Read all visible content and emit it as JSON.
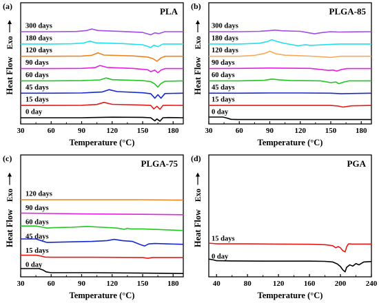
{
  "chart_data": [
    {
      "panel": "(a)",
      "type": "line",
      "title": "PLA",
      "xlabel": "Temperature (°C)",
      "ylabel": "Heat Flow",
      "y_direction": "Exo",
      "xlim": [
        30,
        190
      ],
      "xticks": [
        30,
        60,
        90,
        120,
        150,
        180
      ],
      "series": [
        {
          "name": "0 day",
          "color": "#000000",
          "x": [
            30,
            60,
            90,
            120,
            150,
            158,
            162,
            164,
            167,
            170,
            175,
            190
          ],
          "y": [
            0,
            0,
            0,
            0.3,
            0.2,
            0,
            -1.6,
            -0.6,
            -1.8,
            0,
            0.1,
            0
          ]
        },
        {
          "name": "15 days",
          "color": "#e81818",
          "x": [
            30,
            60,
            90,
            105,
            112,
            120,
            150,
            158,
            161,
            164,
            167,
            170,
            175,
            190
          ],
          "y": [
            0,
            0,
            0.1,
            0.5,
            1.6,
            0.6,
            0.2,
            0,
            -1.8,
            -0.4,
            -2.0,
            0,
            0.1,
            0
          ]
        },
        {
          "name": "45 days",
          "color": "#1428d2",
          "x": [
            30,
            60,
            90,
            110,
            117,
            125,
            150,
            158,
            162,
            165,
            168,
            172,
            190
          ],
          "y": [
            0,
            0,
            0.1,
            0.6,
            1.8,
            0.8,
            0.2,
            -0.3,
            -2.6,
            -0.8,
            -2.6,
            -0.2,
            0
          ]
        },
        {
          "name": "60 days",
          "color": "#1ec81e",
          "x": [
            30,
            60,
            90,
            108,
            114,
            120,
            150,
            158,
            162,
            165,
            168,
            172,
            190
          ],
          "y": [
            0,
            0,
            0.1,
            0.5,
            1.5,
            0.6,
            0.1,
            -0.4,
            -1.6,
            -3.2,
            -1.4,
            -0.2,
            0
          ]
        },
        {
          "name": "90 days",
          "color": "#e81ee0",
          "x": [
            30,
            60,
            90,
            103,
            108,
            115,
            140,
            155,
            158,
            162,
            165,
            168,
            172,
            190
          ],
          "y": [
            0,
            0,
            0.1,
            0.5,
            1.6,
            0.6,
            0.1,
            -0.6,
            -1.6,
            -0.8,
            -2.2,
            -0.8,
            0,
            0
          ]
        },
        {
          "name": "120 days",
          "color": "#f0821e",
          "x": [
            30,
            60,
            90,
            100,
            106,
            112,
            140,
            155,
            160,
            164,
            168,
            172,
            190
          ],
          "y": [
            0,
            0,
            0.1,
            0.5,
            1.8,
            0.6,
            0.2,
            -0.4,
            -1.2,
            -2.6,
            -0.8,
            0,
            0
          ]
        },
        {
          "name": "180 days",
          "color": "#1ee1f0",
          "x": [
            30,
            60,
            80,
            92,
            98,
            104,
            130,
            150,
            158,
            161,
            165,
            170,
            190
          ],
          "y": [
            0,
            0,
            0.1,
            0.5,
            1.5,
            0.6,
            0.2,
            -0.4,
            -1.8,
            -0.6,
            -1.4,
            0,
            0
          ]
        },
        {
          "name": "300 days",
          "color": "#a04be6",
          "x": [
            30,
            60,
            85,
            95,
            100,
            106,
            130,
            150,
            158,
            162,
            166,
            172,
            190
          ],
          "y": [
            0,
            0,
            0.1,
            0.6,
            1.4,
            0.6,
            0.1,
            -0.4,
            -1.6,
            -0.6,
            -1.0,
            0,
            0
          ]
        }
      ]
    },
    {
      "panel": "(b)",
      "type": "line",
      "title": "PLGA-85",
      "xlabel": "Temperature (°C)",
      "ylabel": "Heat Flow",
      "y_direction": "Exo",
      "xlim": [
        30,
        190
      ],
      "xticks": [
        30,
        60,
        90,
        120,
        150,
        180
      ],
      "series": [
        {
          "name": "0 day",
          "color": "#000000",
          "x": [
            30,
            44,
            48,
            52,
            58,
            190
          ],
          "y": [
            0.4,
            0.4,
            -0.2,
            -0.9,
            -1.0,
            -1.0
          ]
        },
        {
          "name": "15 days",
          "color": "#e81818",
          "x": [
            30,
            150,
            157,
            162,
            170,
            190
          ],
          "y": [
            0,
            0,
            -0.3,
            -0.9,
            -0.2,
            0
          ]
        },
        {
          "name": "45 days",
          "color": "#1428d2",
          "x": [
            30,
            60,
            90,
            120,
            150,
            160,
            190
          ],
          "y": [
            0,
            0,
            0.1,
            0.1,
            0,
            -0.3,
            0
          ]
        },
        {
          "name": "60 days",
          "color": "#1ec81e",
          "x": [
            30,
            60,
            85,
            92,
            100,
            110,
            140,
            150,
            155,
            158,
            162,
            168,
            190
          ],
          "y": [
            0,
            0,
            0.3,
            1.0,
            0.5,
            0.2,
            0,
            -1.0,
            -0.6,
            -1.6,
            -0.8,
            0,
            0
          ]
        },
        {
          "name": "90 days",
          "color": "#e81ee0",
          "x": [
            30,
            60,
            90,
            110,
            130,
            148,
            152,
            156,
            160,
            166,
            190
          ],
          "y": [
            0,
            0.1,
            0.3,
            0.2,
            0.1,
            -1.0,
            -0.8,
            -1.4,
            -0.6,
            0,
            0
          ]
        },
        {
          "name": "120 days",
          "color": "#f5aa5a",
          "x": [
            30,
            60,
            75,
            85,
            90,
            96,
            105,
            120,
            130,
            150,
            155,
            160,
            190
          ],
          "y": [
            0,
            0,
            0.5,
            1.6,
            2.8,
            1.4,
            0.6,
            0.3,
            0.1,
            -0.6,
            -0.3,
            0,
            0
          ]
        },
        {
          "name": "180 days",
          "color": "#1ee1f0",
          "x": [
            30,
            60,
            80,
            88,
            92,
            98,
            105,
            118,
            125,
            130,
            150,
            158,
            190
          ],
          "y": [
            0,
            0,
            0.4,
            1.4,
            2.4,
            1.2,
            0.3,
            -1.0,
            -0.4,
            -0.8,
            -0.2,
            0,
            0
          ]
        },
        {
          "name": "300 days",
          "color": "#a04be6",
          "x": [
            30,
            60,
            80,
            90,
            95,
            102,
            120,
            130,
            134,
            140,
            150,
            158,
            190
          ],
          "y": [
            0,
            0,
            0.2,
            0.6,
            0.9,
            0.5,
            0.2,
            -0.8,
            -1.2,
            -0.6,
            0,
            -0.2,
            0
          ]
        }
      ]
    },
    {
      "panel": "(c)",
      "type": "line",
      "title": "PLGA-75",
      "xlabel": "Temperature (°C)",
      "ylabel": "Heat Flow",
      "y_direction": "Exo",
      "xlim": [
        30,
        190
      ],
      "xticks": [
        30,
        60,
        90,
        120,
        150,
        180
      ],
      "series": [
        {
          "name": "0 day",
          "color": "#000000",
          "x": [
            30,
            48,
            52,
            55,
            60,
            70,
            100,
            150,
            190
          ],
          "y": [
            1.0,
            1.0,
            0.3,
            -0.6,
            -1.0,
            -1.0,
            -1.0,
            -1.2,
            -1.4
          ]
        },
        {
          "name": "15 days",
          "color": "#e81818",
          "x": [
            30,
            45,
            50,
            54,
            60,
            100,
            150,
            155,
            160,
            190
          ],
          "y": [
            0.6,
            0.6,
            0.2,
            -0.3,
            -0.4,
            -0.4,
            -0.5,
            -0.9,
            -0.5,
            -0.5
          ]
        },
        {
          "name": "45 days",
          "color": "#1428d2",
          "x": [
            30,
            45,
            52,
            56,
            62,
            80,
            100,
            115,
            122,
            130,
            140,
            148,
            152,
            156,
            162,
            175,
            190
          ],
          "y": [
            1.6,
            1.6,
            0.5,
            -0.1,
            0,
            0.2,
            0.4,
            0.8,
            1.4,
            0.8,
            0.4,
            -1.2,
            -1.8,
            -0.8,
            -0.6,
            -0.8,
            -1.0
          ]
        },
        {
          "name": "60 days",
          "color": "#1ec81e",
          "x": [
            30,
            45,
            52,
            56,
            62,
            80,
            95,
            110,
            125,
            132,
            135,
            138,
            150,
            170,
            190
          ],
          "y": [
            1.0,
            1.0,
            0.4,
            0,
            0.2,
            0.4,
            0.8,
            0.4,
            0,
            -0.6,
            -0.1,
            -0.4,
            -0.4,
            -0.8,
            -1.2
          ]
        },
        {
          "name": "90 days",
          "color": "#e81ee0",
          "x": [
            30,
            60,
            90,
            120,
            150,
            190
          ],
          "y": [
            0.4,
            0.2,
            0,
            -0.1,
            -0.2,
            -0.4
          ]
        },
        {
          "name": "120 days",
          "color": "#f0821e",
          "x": [
            30,
            60,
            90,
            120,
            150,
            190
          ],
          "y": [
            0,
            0,
            0,
            0,
            0,
            -0.2
          ]
        }
      ]
    },
    {
      "panel": "(d)",
      "type": "line",
      "title": "PGA",
      "xlabel": "Temperature (°C)",
      "ylabel": "Heat Flow",
      "y_direction": "Exo",
      "xlim": [
        30,
        240
      ],
      "xticks": [
        40,
        80,
        120,
        160,
        200,
        240
      ],
      "series": [
        {
          "name": "0 day",
          "color": "#000000",
          "x": [
            30,
            36,
            40,
            60,
            100,
            160,
            180,
            190,
            196,
            200,
            203,
            206,
            208,
            212,
            216,
            220,
            224,
            230,
            240
          ],
          "y": [
            1.6,
            1.2,
            0.8,
            0.7,
            0.6,
            0.6,
            0.5,
            0.2,
            -0.8,
            -2.0,
            -3.6,
            -4.6,
            -2.4,
            -1.2,
            -1.8,
            -0.6,
            -1.2,
            0.2,
            0.4
          ]
        },
        {
          "name": "15 days",
          "color": "#e81818",
          "x": [
            30,
            35,
            40,
            80,
            120,
            160,
            180,
            190,
            194,
            197,
            200,
            203,
            206,
            208,
            210,
            212,
            215,
            240
          ],
          "y": [
            0.6,
            0.5,
            0.3,
            0.3,
            0.2,
            0.1,
            -0.1,
            -0.6,
            -1.6,
            -1.0,
            -1.6,
            -3.0,
            -3.6,
            -1.2,
            0.2,
            0.3,
            0.2,
            0.2
          ]
        }
      ]
    }
  ]
}
